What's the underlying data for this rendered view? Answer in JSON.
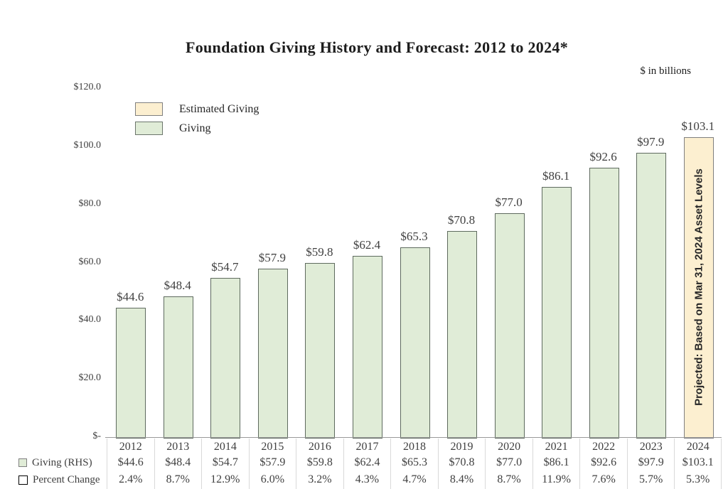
{
  "chart": {
    "title": "Foundation Giving History and Forecast: 2012 to 2024*",
    "units_note": "$ in billions",
    "legend": [
      {
        "label": "Estimated Giving"
      },
      {
        "label": "Giving"
      }
    ]
  },
  "chart_data": {
    "type": "bar",
    "title": "Foundation Giving History and Forecast: 2012 to 2024*",
    "units_note": "$ in billions",
    "categories": [
      "2012",
      "2013",
      "2014",
      "2015",
      "2016",
      "2017",
      "2018",
      "2019",
      "2020",
      "2021",
      "2022",
      "2023",
      "2024"
    ],
    "series": [
      {
        "name": "Giving (RHS)",
        "values": [
          44.6,
          48.4,
          54.7,
          57.9,
          59.8,
          62.4,
          65.3,
          70.8,
          77.0,
          86.1,
          92.6,
          97.9,
          103.1
        ]
      }
    ],
    "percent_change": [
      "2.4%",
      "8.7%",
      "12.9%",
      "6.0%",
      "3.2%",
      "4.3%",
      "4.7%",
      "8.4%",
      "8.7%",
      "11.9%",
      "7.6%",
      "5.7%",
      "5.3%"
    ],
    "bar_labels": [
      "$44.6",
      "$48.4",
      "$54.7",
      "$57.9",
      "$59.8",
      "$62.4",
      "$65.3",
      "$70.8",
      "$77.0",
      "$86.1",
      "$92.6",
      "$97.9",
      "$103.1"
    ],
    "projected_index": 12,
    "projected_note": "Projected: Based on Mar 31, 2024 Asset Levels",
    "y_ticks": [
      {
        "label": "$120.0",
        "value": 120
      },
      {
        "label": "$100.0",
        "value": 100
      },
      {
        "label": "$80.0",
        "value": 80
      },
      {
        "label": "$60.0",
        "value": 60
      },
      {
        "label": "$40.0",
        "value": 40
      },
      {
        "label": "$20.0",
        "value": 20
      },
      {
        "label": "$-",
        "value": 0
      }
    ],
    "ylim": [
      0,
      120
    ],
    "grid": false,
    "legend_position": "top-left",
    "colors": {
      "giving_fill": "#E0ECD7",
      "giving_border": "#5E6A5E",
      "estimated_fill": "#FCEFD0",
      "estimated_border": "#7F7F7F",
      "text": "#404040",
      "table_line": "#D9D9D9"
    }
  },
  "table": {
    "rows": [
      {
        "label": "Giving (RHS)",
        "key": "giving",
        "cells": [
          "$44.6",
          "$48.4",
          "$54.7",
          "$57.9",
          "$59.8",
          "$62.4",
          "$65.3",
          "$70.8",
          "$77.0",
          "$86.1",
          "$92.6",
          "$97.9",
          "$103.1"
        ]
      },
      {
        "label": "Percent Change",
        "key": "percent-change",
        "cells": [
          "2.4%",
          "8.7%",
          "12.9%",
          "6.0%",
          "3.2%",
          "4.3%",
          "4.7%",
          "8.4%",
          "8.7%",
          "11.9%",
          "7.6%",
          "5.7%",
          "5.3%"
        ]
      }
    ]
  }
}
